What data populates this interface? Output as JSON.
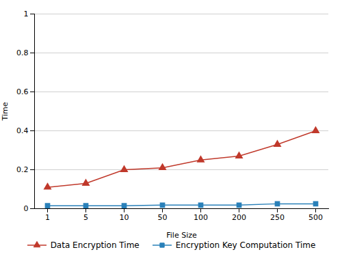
{
  "chart_data": {
    "type": "line",
    "categories": [
      "1",
      "5",
      "10",
      "50",
      "100",
      "200",
      "250",
      "500"
    ],
    "series": [
      {
        "name": "Data Encryption Time",
        "color": "#c0392b",
        "marker": "triangle",
        "values": [
          0.11,
          0.13,
          0.2,
          0.21,
          0.25,
          0.27,
          0.33,
          0.4
        ]
      },
      {
        "name": "Encryption Key Computation Time",
        "color": "#2980b9",
        "marker": "square",
        "values": [
          0.015,
          0.015,
          0.015,
          0.018,
          0.018,
          0.018,
          0.025,
          0.025
        ]
      }
    ],
    "xlabel": "File Size",
    "ylabel": "Time",
    "ylim": [
      0,
      1.0
    ],
    "yticks": [
      0,
      0.2,
      0.4,
      0.6,
      0.8,
      1
    ],
    "grid": true,
    "legend": "bottom"
  }
}
